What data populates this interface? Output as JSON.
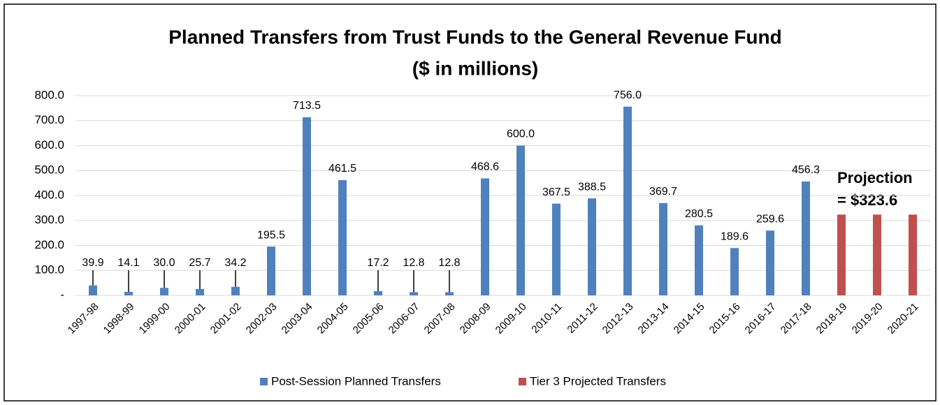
{
  "chart_data": {
    "type": "bar",
    "title": "Planned Transfers from Trust Funds to the General Revenue Fund",
    "subtitle": "($ in millions)",
    "categories": [
      "1997-98",
      "1998-99",
      "1999-00",
      "2000-01",
      "2001-02",
      "2002-03",
      "2003-04",
      "2004-05",
      "2005-06",
      "2006-07",
      "2007-08",
      "2008-09",
      "2009-10",
      "2010-11",
      "2011-12",
      "2012-13",
      "2013-14",
      "2014-15",
      "2015-16",
      "2016-17",
      "2017-18",
      "2018-19",
      "2019-20",
      "2020-21"
    ],
    "series": [
      {
        "name": "Post-Session Planned Transfers",
        "color": "#4f81bd",
        "values": [
          39.9,
          14.1,
          30.0,
          25.7,
          34.2,
          195.5,
          713.5,
          461.5,
          17.2,
          12.8,
          12.8,
          468.6,
          600.0,
          367.5,
          388.5,
          756.0,
          369.7,
          280.5,
          189.6,
          259.6,
          456.3,
          null,
          null,
          null
        ],
        "value_labels": [
          "39.9",
          "14.1",
          "30.0",
          "25.7",
          "34.2",
          "195.5",
          "713.5",
          "461.5",
          "17.2",
          "12.8",
          "12.8",
          "468.6",
          "600.0",
          "367.5",
          "388.5",
          "756.0",
          "369.7",
          "280.5",
          "189.6",
          "259.6",
          "456.3",
          null,
          null,
          null
        ]
      },
      {
        "name": "Tier 3 Projected Transfers",
        "color": "#c0504d",
        "values": [
          null,
          null,
          null,
          null,
          null,
          null,
          null,
          null,
          null,
          null,
          null,
          null,
          null,
          null,
          null,
          null,
          null,
          null,
          null,
          null,
          null,
          323.6,
          323.6,
          323.6
        ]
      }
    ],
    "annotations": [
      "Projection",
      "= $323.6"
    ],
    "ylim": [
      0,
      800
    ],
    "yticks": [
      {
        "value": 0,
        "label": "-"
      },
      {
        "value": 100,
        "label": "100.0"
      },
      {
        "value": 200,
        "label": "200.0"
      },
      {
        "value": 300,
        "label": "300.0"
      },
      {
        "value": 400,
        "label": "400.0"
      },
      {
        "value": 500,
        "label": "500.0"
      },
      {
        "value": 600,
        "label": "600.0"
      },
      {
        "value": 700,
        "label": "700.0"
      },
      {
        "value": 800,
        "label": "800.0"
      }
    ],
    "grid": true,
    "legend": "bottom"
  }
}
